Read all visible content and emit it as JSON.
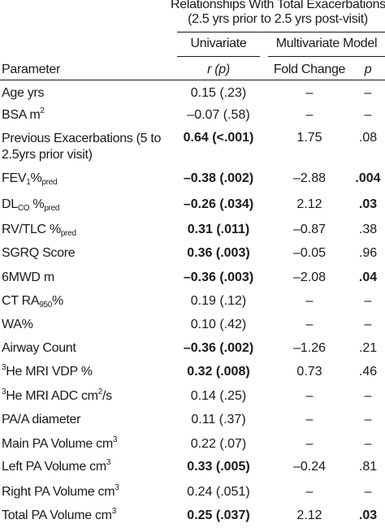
{
  "header": {
    "group_title_line1": "Relationships With Total Exacerbations",
    "group_title_line2": "(2.5 yrs prior to 2.5 yrs post-visit)",
    "univariate": "Univariate",
    "multivariate": "Multivariate Model",
    "parameter": "Parameter",
    "r_p": "r (p)",
    "fold_change": "Fold Change",
    "p": "p"
  },
  "rows": [
    {
      "pre": "Age yrs",
      "sub": "",
      "post": "",
      "sup": "",
      "post2": "",
      "r": "0.15 (.23)",
      "r_bold": false,
      "fc": "–",
      "p": "–",
      "p_bold": false
    },
    {
      "pre": "BSA m",
      "sub": "",
      "post": "",
      "sup": "2",
      "post2": "",
      "r": "–0.07 (.58)",
      "r_bold": false,
      "fc": "–",
      "p": "–",
      "p_bold": false
    },
    {
      "pre": "Previous Exacerbations (5 to",
      "line2": "2.5yrs prior visit)",
      "r": "0.64 (<.001)",
      "r_bold": true,
      "fc": "1.75",
      "p": ".08",
      "p_bold": false
    },
    {
      "pre": "FEV",
      "sub": "1",
      "post": "%",
      "sub2": "pred",
      "r": "–0.38 (.002)",
      "r_bold": true,
      "fc": "–2.88",
      "p": ".004",
      "p_bold": true
    },
    {
      "pre": "DL",
      "sub": "CO",
      "post": " %",
      "sub2": "pred",
      "r": "–0.26 (.034)",
      "r_bold": true,
      "fc": "2.12",
      "p": ".03",
      "p_bold": true
    },
    {
      "pre": "RV/TLC %",
      "sub": "pred",
      "r": "0.31 (.011)",
      "r_bold": true,
      "fc": "–0.87",
      "p": ".38",
      "p_bold": false
    },
    {
      "pre": "SGRQ Score",
      "r": "0.36 (.003)",
      "r_bold": true,
      "fc": "–0.05",
      "p": ".96",
      "p_bold": false
    },
    {
      "pre": "6MWD m",
      "r": "–0.36 (.003)",
      "r_bold": true,
      "fc": "–2.08",
      "p": ".04",
      "p_bold": true
    },
    {
      "pre": "CT RA",
      "sub": "950",
      "post": "%",
      "r": "0.19 (.12)",
      "r_bold": false,
      "fc": "–",
      "p": "–",
      "p_bold": false
    },
    {
      "pre": "WA%",
      "r": "0.10 (.42)",
      "r_bold": false,
      "fc": "–",
      "p": "–",
      "p_bold": false
    },
    {
      "pre": "Airway Count",
      "r": "–0.36 (.002)",
      "r_bold": true,
      "fc": "–1.26",
      "p": ".21",
      "p_bold": false
    },
    {
      "lead_sup": "3",
      "pre": "He MRI VDP %",
      "r": "0.32 (.008)",
      "r_bold": true,
      "fc": "0.73",
      "p": ".46",
      "p_bold": false
    },
    {
      "lead_sup": "3",
      "pre": "He MRI ADC cm",
      "sup": "2",
      "post2": "/s",
      "r": "0.14 (.25)",
      "r_bold": false,
      "fc": "–",
      "p": "–",
      "p_bold": false
    },
    {
      "pre": "PA/A diameter",
      "r": "0.11 (.37)",
      "r_bold": false,
      "fc": "–",
      "p": "–",
      "p_bold": false
    },
    {
      "pre": "Main PA Volume cm",
      "sup": "3",
      "r": "0.22 (.07)",
      "r_bold": false,
      "fc": "–",
      "p": "–",
      "p_bold": false
    },
    {
      "pre": "Left PA Volume cm",
      "sup": "3",
      "r": "0.33 (.005)",
      "r_bold": true,
      "fc": "–0.24",
      "p": ".81",
      "p_bold": false
    },
    {
      "pre": "Right PA Volume cm",
      "sup": "3",
      "r": "0.24 (.051)",
      "r_bold": false,
      "fc": "–",
      "p": "–",
      "p_bold": false
    },
    {
      "pre": "Total PA Volume cm",
      "sup": "3",
      "r": "0.25 (.037)",
      "r_bold": true,
      "fc": "2.12",
      "p": ".03",
      "p_bold": true
    }
  ]
}
